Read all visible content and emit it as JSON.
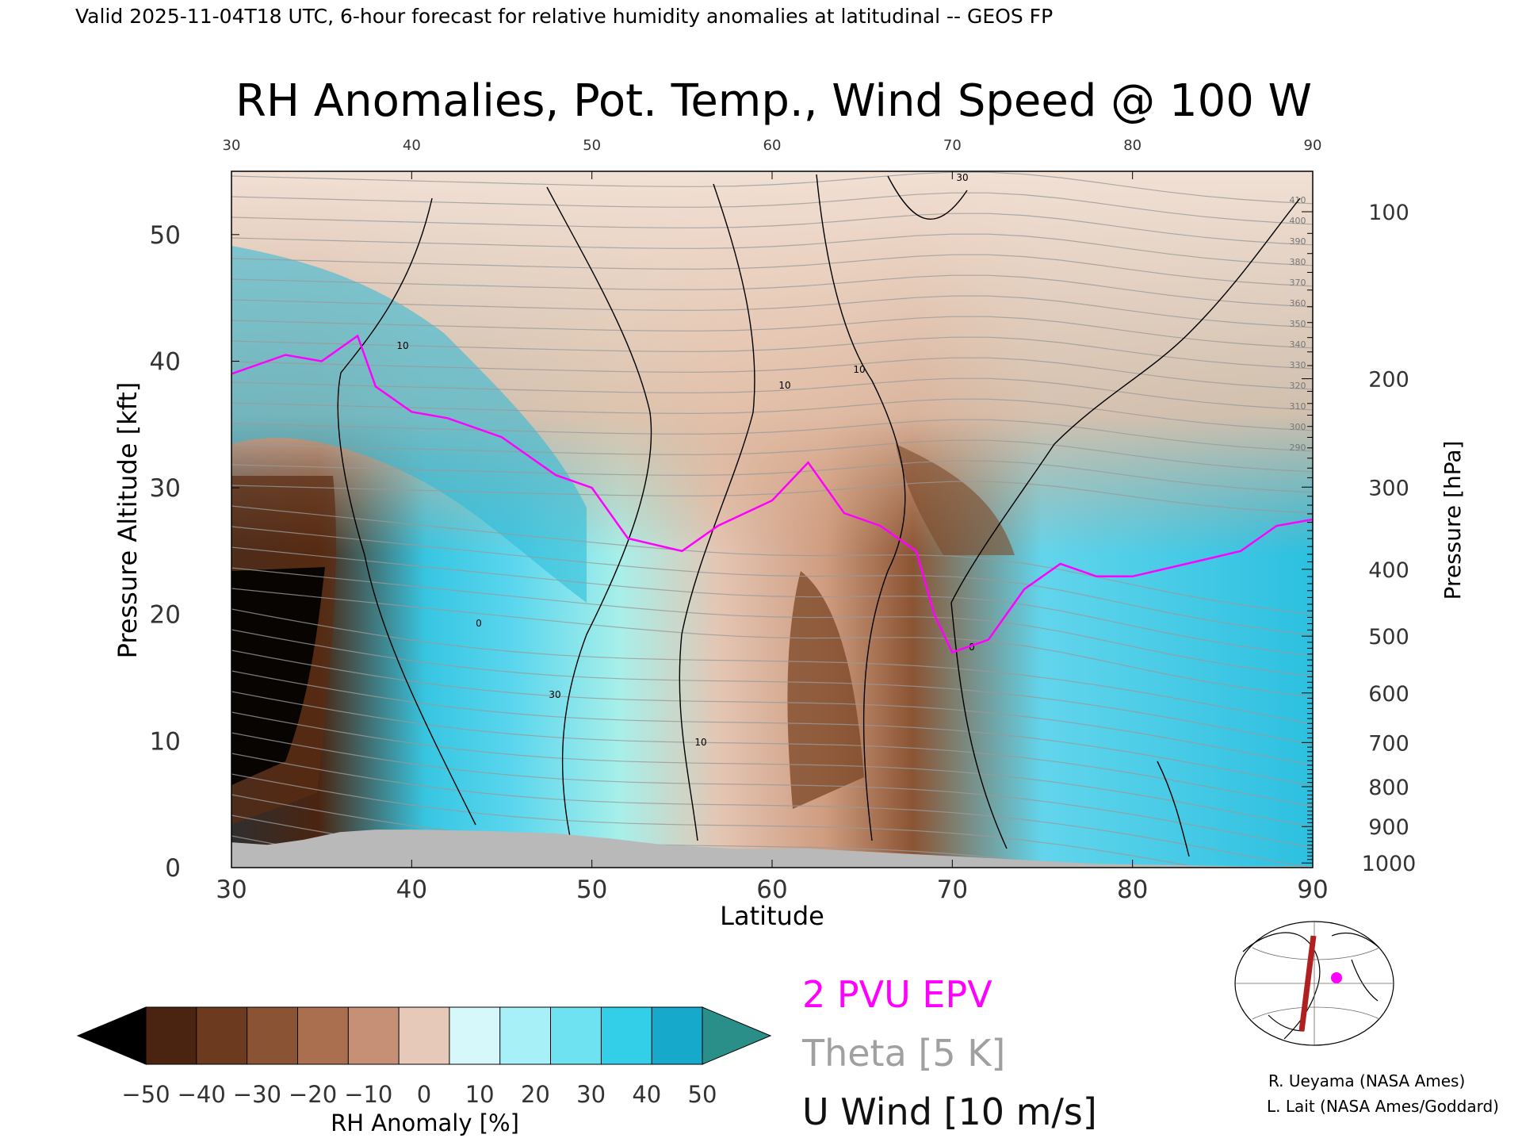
{
  "header": {
    "valid_line": "Valid 2025-11-04T18 UTC, 6-hour forecast for relative humidity anomalies at latitudinal -- GEOS FP"
  },
  "chart_data": {
    "type": "heatmap",
    "title": "RH Anomalies, Pot. Temp., Wind Speed @ 100 W",
    "xlabel": "Latitude",
    "ylabel_left": "Pressure Altitude [kft]",
    "ylabel_right": "Pressure [hPa]",
    "xlim": [
      30,
      90
    ],
    "ylim": [
      0,
      55
    ],
    "x_ticks": [
      "30",
      "40",
      "50",
      "60",
      "70",
      "80",
      "90"
    ],
    "y_ticks_left": [
      "0",
      "10",
      "20",
      "30",
      "40",
      "50"
    ],
    "y_ticks_right": [
      {
        "label": "100",
        "hpa": 100
      },
      {
        "label": "200",
        "hpa": 200
      },
      {
        "label": "300",
        "hpa": 300
      },
      {
        "label": "400",
        "hpa": 400
      },
      {
        "label": "500",
        "hpa": 500
      },
      {
        "label": "600",
        "hpa": 600
      },
      {
        "label": "700",
        "hpa": 700
      },
      {
        "label": "800",
        "hpa": 800
      },
      {
        "label": "900",
        "hpa": 900
      },
      {
        "label": "1000",
        "hpa": 1000
      }
    ],
    "colorbar": {
      "label": "RH Anomaly [%]",
      "tick_labels": [
        "-50",
        "-40",
        "-30",
        "-20",
        "-10",
        "0",
        "10",
        "20",
        "30",
        "40",
        "50"
      ],
      "colors": [
        "#4a2410",
        "#6b3a1f",
        "#8a5334",
        "#a96f4f",
        "#c69076",
        "#e6c9b8",
        "#d6f8fb",
        "#a8f0f8",
        "#6fe2f2",
        "#33cfe8",
        "#16a9cc"
      ],
      "under_color": "#000000",
      "over_color": "#2a8f88"
    },
    "theta_labels": [
      "410",
      "400",
      "390",
      "380",
      "370",
      "360",
      "350",
      "340",
      "330",
      "320",
      "310",
      "300",
      "290"
    ],
    "wind_labels": [
      "10",
      "30",
      "10",
      "10",
      "30",
      "0",
      "0",
      "10"
    ],
    "legend": [
      {
        "label": "2 PVU EPV",
        "color": "#ff00ff"
      },
      {
        "label": "Theta [5 K]",
        "color": "#a0a0a0"
      },
      {
        "label": "U Wind [10 m/s]",
        "color": "#000000"
      }
    ],
    "epv_2pvu_kft": [
      [
        30,
        39
      ],
      [
        33,
        40.5
      ],
      [
        35,
        40
      ],
      [
        37,
        42
      ],
      [
        38,
        38
      ],
      [
        40,
        36
      ],
      [
        42,
        35.5
      ],
      [
        45,
        34
      ],
      [
        48,
        31
      ],
      [
        50,
        30
      ],
      [
        52,
        26
      ],
      [
        55,
        25
      ],
      [
        57,
        27
      ],
      [
        60,
        29
      ],
      [
        62,
        32
      ],
      [
        64,
        28
      ],
      [
        66,
        27
      ],
      [
        68,
        25
      ],
      [
        69,
        20
      ],
      [
        70,
        17
      ],
      [
        72,
        18
      ],
      [
        74,
        22
      ],
      [
        76,
        24
      ],
      [
        78,
        23
      ],
      [
        80,
        23
      ],
      [
        83,
        24
      ],
      [
        86,
        25
      ],
      [
        88,
        27
      ],
      [
        90,
        27.5
      ]
    ],
    "surface_kft": [
      [
        30,
        2
      ],
      [
        32,
        1.8
      ],
      [
        34,
        2.2
      ],
      [
        36,
        2.8
      ],
      [
        38,
        3.0
      ],
      [
        40,
        3.0
      ],
      [
        44,
        2.9
      ],
      [
        48,
        2.7
      ],
      [
        51,
        2.3
      ],
      [
        54,
        1.8
      ],
      [
        58,
        1.5
      ],
      [
        62,
        1.5
      ],
      [
        66,
        1.2
      ],
      [
        70,
        0.9
      ],
      [
        74,
        0.6
      ],
      [
        78,
        0.3
      ],
      [
        82,
        0.2
      ],
      [
        86,
        0.1
      ],
      [
        90,
        0.1
      ]
    ]
  },
  "map_inset": {
    "note_line1": "R. Ueyama (NASA Ames)",
    "note_line2": "L. Lait (NASA Ames/Goddard)",
    "track_color": "#b02020",
    "marker_color": "#ff00ff"
  }
}
